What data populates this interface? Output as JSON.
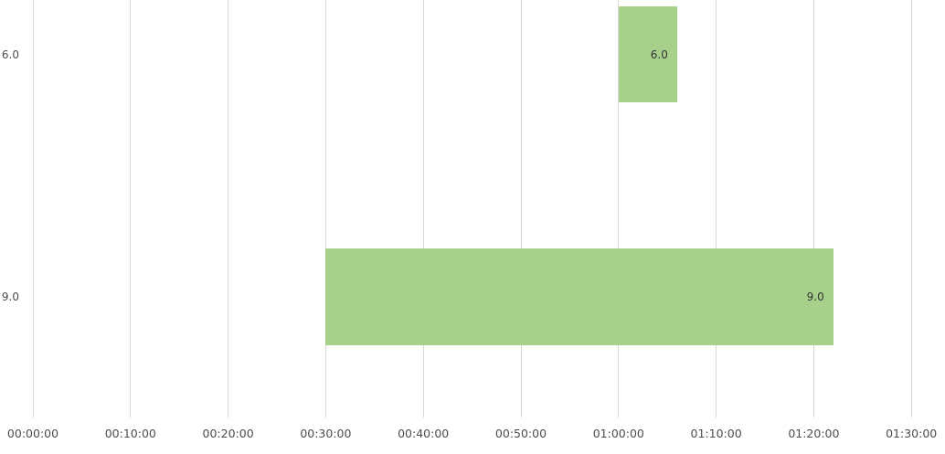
{
  "chart_data": {
    "type": "bar",
    "subtype": "timeline-gantt",
    "orientation": "horizontal",
    "title": "",
    "xlabel": "",
    "ylabel": "",
    "legend": "none",
    "grid": "vertical-only",
    "categories": [
      "6.0",
      "9.0"
    ],
    "bars": [
      {
        "category": "6.0",
        "start": "01:00:00",
        "end": "01:06:00",
        "duration_seconds": 360,
        "label": "6.0"
      },
      {
        "category": "9.0",
        "start": "00:30:00",
        "end": "01:22:00",
        "duration_seconds": 3120,
        "label": "9.0"
      }
    ],
    "x_ticks": [
      "00:00:00",
      "00:10:00",
      "00:20:00",
      "00:30:00",
      "00:40:00",
      "00:50:00",
      "01:00:00",
      "01:10:00",
      "01:20:00",
      "01:30:00"
    ],
    "x_tick_interval_seconds": 600,
    "x_range": [
      "00:00:00",
      "01:30:00"
    ],
    "colors": {
      "bar_fill": "#a7d18b",
      "bar_label_text": "#333333",
      "tick_label_text": "#4d4d4d",
      "gridline": "#d9d9d9",
      "background": "#ffffff"
    }
  }
}
